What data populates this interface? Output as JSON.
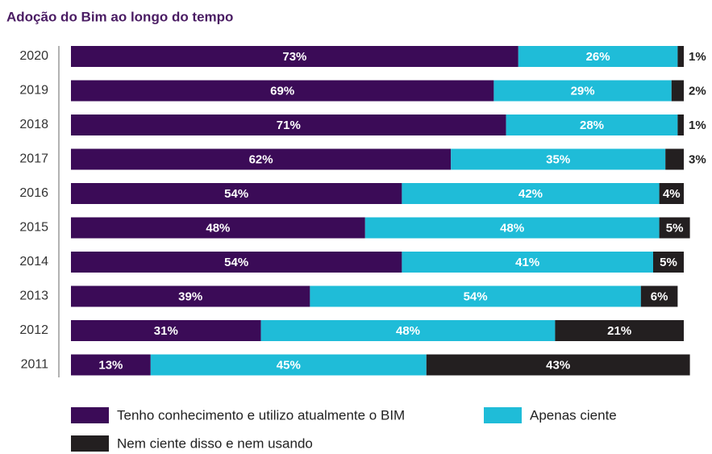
{
  "chart_data": {
    "type": "stacked-bar-horizontal",
    "title": "Adoção do Bim ao longo do tempo",
    "categories": [
      "2020",
      "2019",
      "2018",
      "2017",
      "2016",
      "2015",
      "2014",
      "2013",
      "2012",
      "2011"
    ],
    "xlim": [
      0,
      100
    ],
    "series": [
      {
        "name": "Tenho conhecimento e utilizo atualmente o BIM",
        "color": "#3b0b57",
        "values": [
          73,
          69,
          71,
          62,
          54,
          48,
          54,
          39,
          31,
          13
        ],
        "value_labels": [
          "73%",
          "69%",
          "71%",
          "62%",
          "54%",
          "48%",
          "54%",
          "39%",
          "31%",
          "13%"
        ]
      },
      {
        "name": "Apenas ciente",
        "color": "#1fbcd8",
        "values": [
          26,
          29,
          28,
          35,
          42,
          48,
          41,
          54,
          48,
          45
        ],
        "value_labels": [
          "26%",
          "29%",
          "28%",
          "35%",
          "42%",
          "48%",
          "41%",
          "54%",
          "48%",
          "45%"
        ]
      },
      {
        "name": "Nem ciente disso e nem usando",
        "color": "#231f20",
        "values": [
          1,
          2,
          1,
          3,
          4,
          5,
          5,
          6,
          21,
          43
        ],
        "value_labels": [
          "1%",
          "2%",
          "1%",
          "3%",
          "4%",
          "5%",
          "5%",
          "6%",
          "21%",
          "43%"
        ]
      }
    ],
    "legend": "bottom"
  }
}
